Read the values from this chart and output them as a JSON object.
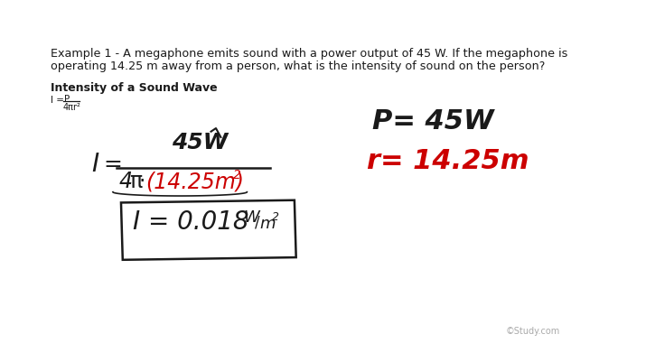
{
  "background_color": "#ffffff",
  "example_text_line1": "Example 1 - A megaphone emits sound with a power output of 45 W. If the megaphone is",
  "example_text_line2": "operating 14.25 m away from a person, what is the intensity of sound on the person?",
  "formula_label": "Intensity of a Sound Wave",
  "watermark": "©Study.com",
  "text_color": "#1a1a1a",
  "red_color": "#cc0000",
  "gray_color": "#aaaaaa"
}
